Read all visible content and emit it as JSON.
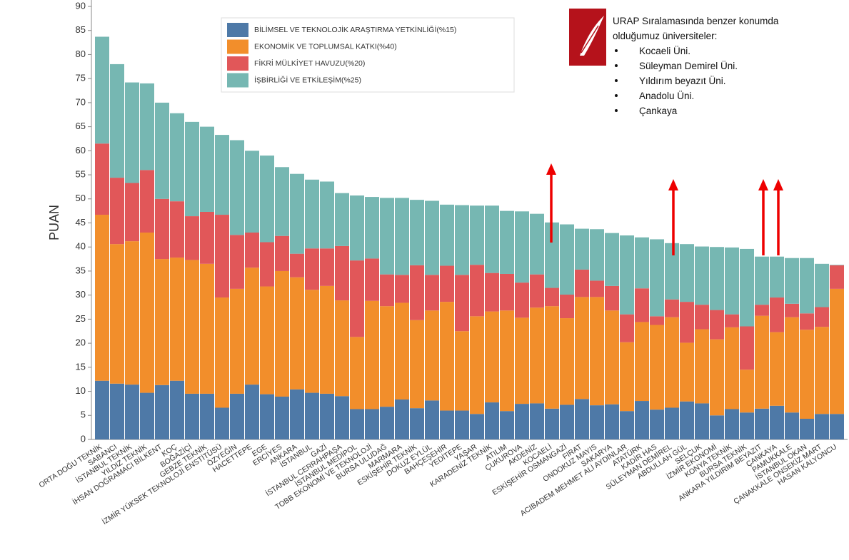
{
  "chart_data": {
    "type": "stacked_bar",
    "y_label": "PUAN",
    "ylim": [
      0,
      90
    ],
    "yticks": [
      0,
      5,
      10,
      15,
      20,
      25,
      30,
      35,
      40,
      45,
      50,
      55,
      60,
      65,
      70,
      75,
      80,
      85,
      90
    ],
    "grid": false,
    "legend": "top-left",
    "categories": [
      "ORTA DOĞU TEKNİK",
      "SABANCI",
      "İSTANBUL TEKNİK",
      "YILDIZ TEKNİK",
      "İHSAN DOĞRAMACI BİLKENT",
      "KOÇ",
      "BOĞAZİÇİ",
      "GEBZE TEKNİK",
      "İZMİR YÜKSEK TEKNOLOJİ ENSTİTÜSÜ",
      "ÖZYEĞİN",
      "HACETTEPE",
      "EGE",
      "ERCİYES",
      "ANKARA",
      "İSTANBUL",
      "GAZİ",
      "İSTANBUL CERRAHPAŞA",
      "İSTANBUL MEDİPOL",
      "TOBB EKONOMİ VE TEKNOLOJİ",
      "BURSA ULUDAĞ",
      "MARMARA",
      "ESKİŞEHİR TEKNİK",
      "DOKUZ EYLÜL",
      "BAHÇEŞEHİR",
      "YEDİTEPE",
      "YAŞAR",
      "KARADENİZ TEKNİK",
      "ATILIM",
      "ÇUKUROVA",
      "AKDENİZ",
      "KOCAELİ",
      "ESKİŞEHİR OSMANGAZİ",
      "FIRAT",
      "ONDOKUZ MAYIS",
      "SAKARYA",
      "ACIBADEM MEHMET ALİ AYDINLAR",
      "ATATÜRK",
      "KADİR HAS",
      "SÜLEYMAN DEMİREL",
      "ABDULLAH GÜL",
      "SELÇUK",
      "İZMİR EKONOMİ",
      "KONYA TEKNİK",
      "BURSA TEKNİK",
      "ANKARA YILDIRIM BEYAZIT",
      "ÇANKAYA",
      "PAMUKKALE",
      "İSTANBUL OKAN",
      "ÇANAKKALE ONSEKİZ MART",
      "HASAN KALYONCU"
    ],
    "series": [
      {
        "name": "BİLİMSEL VE TEKNOLOJİK ARAŞTIRMA YETKİNLİĞİ(%15)",
        "color": "#4e79a7",
        "values": [
          12.2,
          11.6,
          11.4,
          9.7,
          11.3,
          12.2,
          9.5,
          9.5,
          6.6,
          9.5,
          11.4,
          9.4,
          8.9,
          10.4,
          9.7,
          9.5,
          9.0,
          6.3,
          6.3,
          6.8,
          8.3,
          6.5,
          8.1,
          6.0,
          6.0,
          5.3,
          7.7,
          5.9,
          7.4,
          7.5,
          6.4,
          7.2,
          8.4,
          7.1,
          7.3,
          5.9,
          8.0,
          6.2,
          6.6,
          7.9,
          7.5,
          5.0,
          6.3,
          5.6,
          6.4,
          7.0,
          5.6,
          4.3,
          5.3,
          5.3
        ]
      },
      {
        "name": "EKONOMİK VE TOPLUMSAL KATKI(%40)",
        "color": "#f28e2b",
        "values": [
          34.5,
          29.0,
          29.8,
          33.3,
          26.2,
          25.6,
          27.8,
          27.0,
          22.9,
          21.8,
          24.3,
          22.4,
          26.1,
          23.3,
          21.4,
          22.4,
          19.9,
          15.0,
          22.5,
          20.9,
          20.1,
          18.3,
          18.7,
          22.6,
          16.5,
          20.3,
          18.9,
          20.9,
          17.9,
          19.9,
          21.3,
          18.0,
          21.2,
          22.5,
          19.5,
          14.3,
          16.4,
          17.6,
          18.8,
          12.2,
          15.4,
          15.8,
          17.0,
          8.9,
          19.3,
          15.3,
          19.8,
          18.5,
          18.1,
          26.0
        ]
      },
      {
        "name": "FİKRİ MÜLKİYET HAVUZU(%20)",
        "color": "#e15759",
        "values": [
          14.8,
          13.8,
          12.1,
          13.0,
          12.5,
          11.7,
          9.1,
          10.8,
          17.2,
          11.2,
          7.3,
          9.2,
          7.3,
          4.9,
          8.6,
          7.8,
          11.3,
          15.9,
          8.8,
          6.6,
          5.8,
          11.4,
          7.4,
          7.5,
          11.7,
          10.7,
          8.0,
          7.6,
          7.3,
          6.9,
          3.8,
          4.9,
          5.7,
          3.4,
          5.1,
          5.8,
          7.0,
          1.8,
          3.7,
          8.5,
          5.1,
          6.1,
          2.7,
          9.0,
          2.3,
          7.2,
          2.8,
          3.4,
          4.1,
          4.9
        ]
      },
      {
        "name": "İŞBİRLİĞİ VE ETKİLEŞİM(%25)",
        "color": "#76b7b2",
        "values": [
          22.2,
          23.6,
          20.9,
          18.0,
          20.0,
          18.3,
          19.6,
          17.7,
          16.6,
          19.7,
          17.0,
          18.0,
          14.3,
          16.6,
          14.3,
          13.9,
          11.0,
          13.5,
          12.8,
          15.9,
          16.0,
          13.6,
          15.4,
          12.7,
          14.5,
          12.3,
          14.0,
          13.1,
          14.8,
          12.6,
          13.6,
          14.6,
          8.5,
          10.7,
          11.0,
          16.4,
          10.6,
          16.0,
          11.7,
          12.0,
          12.1,
          13.1,
          13.9,
          16.1,
          10.0,
          8.5,
          9.5,
          11.5,
          9.0,
          0.1
        ]
      }
    ],
    "annotation_lines": [
      "URAP Sıralamasında benzer konumda",
      "olduğumuz üniversiteler:"
    ],
    "annotation_bullets": [
      "Kocaeli Üni.",
      "Süleyman Demirel Üni.",
      "Yıldırım beyazıt Üni.",
      "Anadolu Üni.",
      "Çankaya"
    ]
  }
}
